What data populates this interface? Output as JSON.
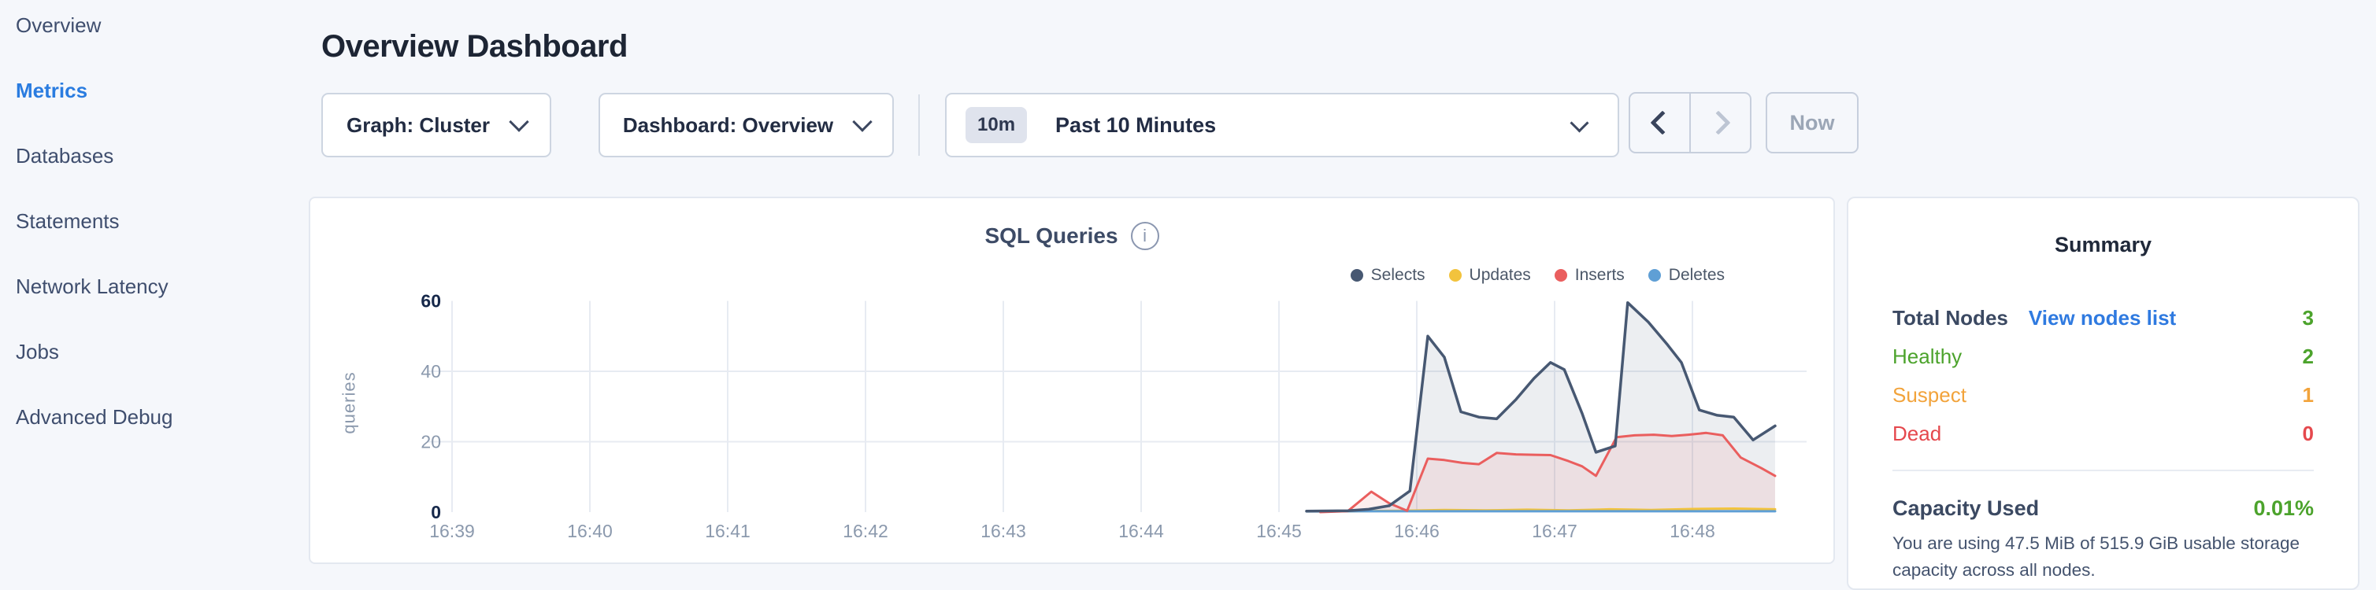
{
  "sidebar": {
    "items": [
      {
        "label": "Overview",
        "active": false
      },
      {
        "label": "Metrics",
        "active": true
      },
      {
        "label": "Databases",
        "active": false
      },
      {
        "label": "Statements",
        "active": false
      },
      {
        "label": "Network Latency",
        "active": false
      },
      {
        "label": "Jobs",
        "active": false
      },
      {
        "label": "Advanced Debug",
        "active": false
      }
    ]
  },
  "header": {
    "title": "Overview Dashboard"
  },
  "controls": {
    "graph_label": "Graph: Cluster",
    "dashboard_label": "Dashboard: Overview",
    "time_badge": "10m",
    "time_label": "Past 10 Minutes",
    "now_label": "Now"
  },
  "icons": {
    "info": "i"
  },
  "chart_data": {
    "type": "area",
    "title": "SQL Queries",
    "ylabel": "queries",
    "xlabel": "",
    "ylim": [
      0,
      60
    ],
    "y_ticks": [
      0,
      20,
      40,
      60
    ],
    "x_ticks": [
      "16:39",
      "16:40",
      "16:41",
      "16:42",
      "16:43",
      "16:44",
      "16:45",
      "16:46",
      "16:47",
      "16:48"
    ],
    "grid": true,
    "legend_position": "top-right",
    "x_unit": "minutes after 16:39",
    "series": [
      {
        "name": "Selects",
        "color": "#475872",
        "fill": "rgba(71,88,114,0.10)",
        "points": [
          [
            6.2,
            0.3
          ],
          [
            6.5,
            0.4
          ],
          [
            6.65,
            0.8
          ],
          [
            6.8,
            1.8
          ],
          [
            6.95,
            6
          ],
          [
            7.08,
            50
          ],
          [
            7.2,
            44
          ],
          [
            7.32,
            28.5
          ],
          [
            7.45,
            27
          ],
          [
            7.58,
            26.5
          ],
          [
            7.72,
            32
          ],
          [
            7.85,
            38
          ],
          [
            7.97,
            42.5
          ],
          [
            8.07,
            40.5
          ],
          [
            8.2,
            28
          ],
          [
            8.3,
            17
          ],
          [
            8.44,
            18.8
          ],
          [
            8.53,
            59.5
          ],
          [
            8.68,
            54
          ],
          [
            8.82,
            47.5
          ],
          [
            8.92,
            42.5
          ],
          [
            9.05,
            29
          ],
          [
            9.18,
            27.5
          ],
          [
            9.3,
            27
          ],
          [
            9.44,
            20.5
          ],
          [
            9.6,
            24.5
          ]
        ]
      },
      {
        "name": "Updates",
        "color": "#f2c33d",
        "fill": "none",
        "points": [
          [
            6.3,
            0.2
          ],
          [
            6.6,
            0.3
          ],
          [
            6.9,
            0.4
          ],
          [
            7.2,
            0.6
          ],
          [
            7.5,
            0.5
          ],
          [
            7.8,
            0.7
          ],
          [
            8.1,
            0.5
          ],
          [
            8.4,
            0.8
          ],
          [
            8.7,
            0.6
          ],
          [
            9.0,
            0.9
          ],
          [
            9.3,
            1.0
          ],
          [
            9.6,
            0.8
          ]
        ]
      },
      {
        "name": "Inserts",
        "color": "#ea5e5e",
        "fill": "rgba(234,94,94,0.10)",
        "points": [
          [
            6.3,
            0
          ],
          [
            6.5,
            0.3
          ],
          [
            6.67,
            5.8
          ],
          [
            6.8,
            2.5
          ],
          [
            6.93,
            0.4
          ],
          [
            7.08,
            15.2
          ],
          [
            7.2,
            14.8
          ],
          [
            7.33,
            14
          ],
          [
            7.45,
            13.6
          ],
          [
            7.58,
            16.8
          ],
          [
            7.72,
            16.4
          ],
          [
            7.85,
            16.3
          ],
          [
            7.97,
            16.2
          ],
          [
            8.1,
            14.5
          ],
          [
            8.2,
            13
          ],
          [
            8.3,
            10.3
          ],
          [
            8.45,
            21.3
          ],
          [
            8.58,
            21.8
          ],
          [
            8.72,
            22
          ],
          [
            8.85,
            21.6
          ],
          [
            8.97,
            22
          ],
          [
            9.1,
            22.5
          ],
          [
            9.22,
            21.8
          ],
          [
            9.35,
            15.5
          ],
          [
            9.5,
            12.5
          ],
          [
            9.6,
            10.3
          ]
        ]
      },
      {
        "name": "Deletes",
        "color": "#5f9fd5",
        "fill": "none",
        "points": [
          [
            6.2,
            0.2
          ],
          [
            6.6,
            0.25
          ],
          [
            7.0,
            0.25
          ],
          [
            7.4,
            0.25
          ],
          [
            7.8,
            0.25
          ],
          [
            8.2,
            0.25
          ],
          [
            8.6,
            0.25
          ],
          [
            9.0,
            0.25
          ],
          [
            9.4,
            0.25
          ],
          [
            9.6,
            0.25
          ]
        ]
      }
    ]
  },
  "summary": {
    "title": "Summary",
    "total_nodes_label": "Total Nodes",
    "view_nodes_link": "View nodes list",
    "total_nodes_value": "3",
    "total_color": "#4ca32c",
    "rows": [
      {
        "label": "Healthy",
        "value": "2",
        "color": "#4ca32c"
      },
      {
        "label": "Suspect",
        "value": "1",
        "color": "#f2a33b"
      },
      {
        "label": "Dead",
        "value": "0",
        "color": "#e5484d"
      }
    ],
    "capacity_label": "Capacity Used",
    "capacity_value": "0.01%",
    "capacity_description": "You are using 47.5 MiB of 515.9 GiB usable storage capacity across all nodes."
  }
}
